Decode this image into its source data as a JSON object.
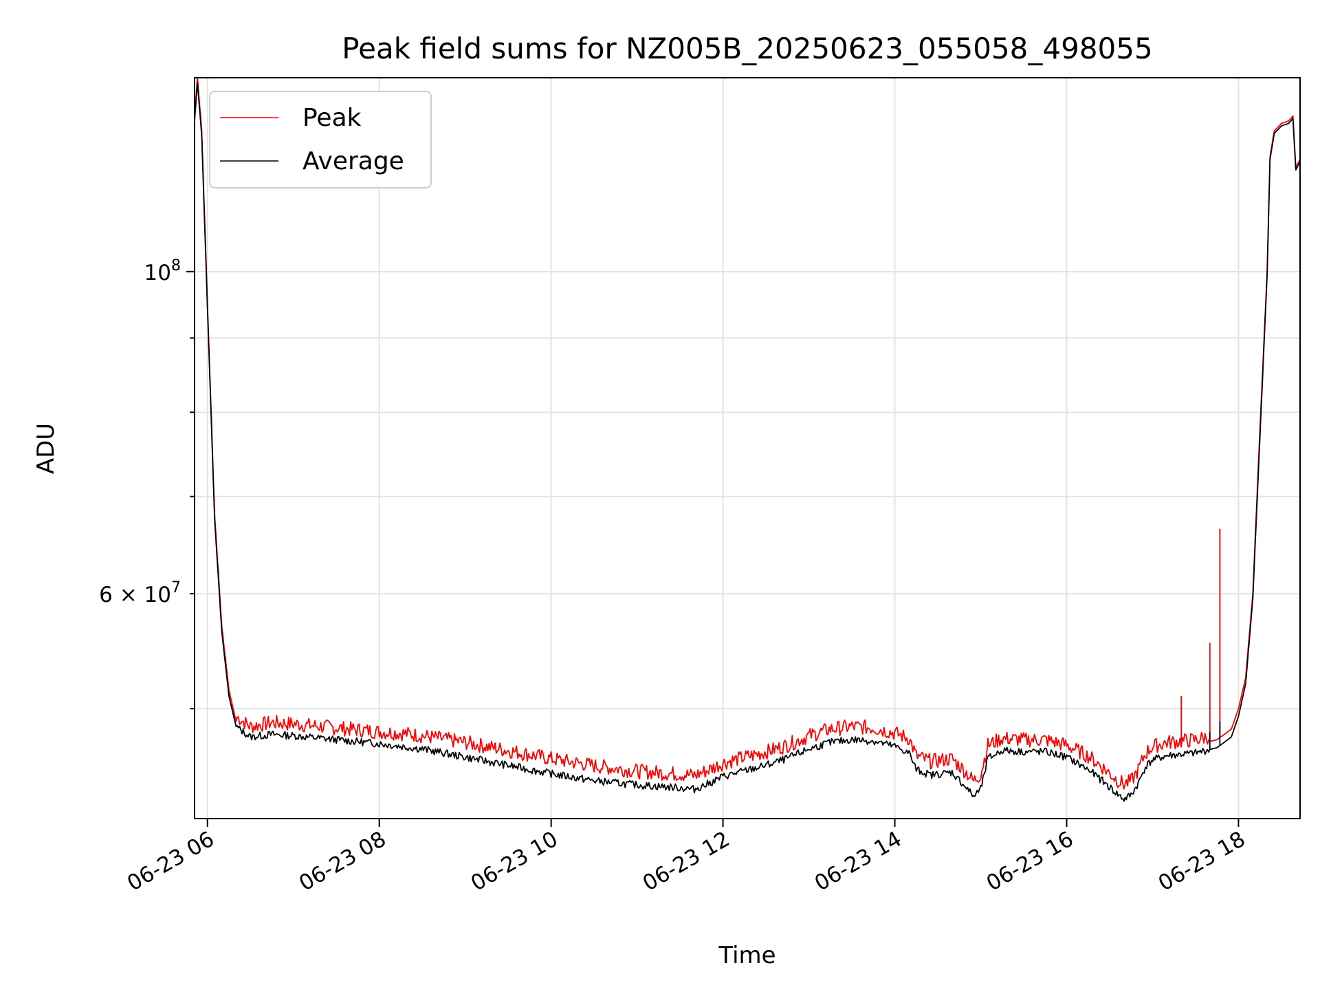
{
  "chart_data": {
    "type": "line",
    "title": "Peak field sums for NZ005B_20250623_055058_498055",
    "xlabel": "Time",
    "ylabel": "ADU",
    "y_scale": "log",
    "ylim": [
      42000000,
      136000000
    ],
    "xlim": [
      "06-23 05:51",
      "06-23 18:43"
    ],
    "grid": true,
    "legend_position": "top-left",
    "x_ticks": [
      "06-23 06",
      "06-23 08",
      "06-23 10",
      "06-23 12",
      "06-23 14",
      "06-23 16",
      "06-23 18"
    ],
    "y_ticks_major": [
      {
        "value": 100000000,
        "label_base": "10",
        "label_exp": "8"
      }
    ],
    "y_ticks_minor": [
      {
        "value": 60000000,
        "label_coef": "6",
        "label_base": "10",
        "label_exp": "7"
      }
    ],
    "y_ticks_unlabeled": [
      50000000,
      70000000,
      80000000,
      90000000
    ],
    "x": [
      "05:51",
      "05:53",
      "05:56",
      "06:00",
      "06:05",
      "06:10",
      "06:15",
      "06:20",
      "06:30",
      "06:45",
      "07:00",
      "07:30",
      "08:00",
      "08:15",
      "08:30",
      "09:00",
      "09:30",
      "10:00",
      "10:30",
      "11:00",
      "11:30",
      "11:40",
      "11:50",
      "12:00",
      "12:30",
      "12:45",
      "13:00",
      "13:15",
      "13:30",
      "13:45",
      "14:00",
      "14:10",
      "14:15",
      "14:25",
      "14:40",
      "14:50",
      "14:55",
      "15:00",
      "15:05",
      "15:15",
      "15:30",
      "15:45",
      "16:00",
      "16:15",
      "16:25",
      "16:35",
      "16:40",
      "16:45",
      "16:50",
      "16:55",
      "17:00",
      "17:10",
      "17:30",
      "17:45",
      "17:55",
      "18:00",
      "18:05",
      "18:10",
      "18:15",
      "18:20",
      "18:22",
      "18:25",
      "18:30",
      "18:35",
      "18:38",
      "18:40",
      "18:41",
      "18:43"
    ],
    "series": [
      {
        "name": "Peak",
        "color": "#ff0000",
        "values": [
          128000000,
          136000000,
          125000000,
          95000000,
          68000000,
          57000000,
          51500000,
          49000000,
          48200000,
          48500000,
          48400000,
          48100000,
          47800000,
          47700000,
          47500000,
          47000000,
          46400000,
          45800000,
          45300000,
          44900000,
          44700000,
          44600000,
          45000000,
          45500000,
          46300000,
          46800000,
          47500000,
          48000000,
          48200000,
          48100000,
          47700000,
          47300000,
          46000000,
          45600000,
          45800000,
          44800000,
          44200000,
          44700000,
          46800000,
          47300000,
          47200000,
          47200000,
          46800000,
          46000000,
          45200000,
          44300000,
          44000000,
          44200000,
          45000000,
          46200000,
          46700000,
          47000000,
          47200000,
          47600000,
          48400000,
          50000000,
          52500000,
          60000000,
          78000000,
          100000000,
          120000000,
          125000000,
          126500000,
          127000000,
          128000000,
          118000000,
          118500000,
          119500000
        ]
      },
      {
        "name": "Average",
        "color": "#000000",
        "values": [
          127000000,
          135000000,
          124000000,
          94500000,
          67500000,
          56500000,
          51000000,
          48600000,
          47800000,
          48000000,
          47900000,
          47600000,
          47300000,
          47100000,
          46900000,
          46300000,
          45700000,
          45100000,
          44600000,
          44300000,
          44100000,
          44000000,
          44400000,
          44900000,
          45700000,
          46200000,
          46900000,
          47400000,
          47600000,
          47500000,
          47100000,
          46600000,
          45400000,
          45000000,
          45200000,
          44100000,
          43500000,
          44000000,
          46200000,
          46800000,
          46700000,
          46700000,
          46300000,
          45400000,
          44600000,
          43700000,
          43300000,
          43600000,
          44400000,
          45600000,
          46100000,
          46400000,
          46600000,
          47000000,
          47800000,
          49400000,
          52000000,
          59500000,
          77000000,
          99500000,
          119500000,
          124500000,
          126000000,
          126500000,
          127500000,
          117500000,
          118000000,
          119000000
        ]
      }
    ],
    "spikes": [
      {
        "time": "17:20",
        "series": "Peak",
        "value": 51000000
      },
      {
        "time": "17:40",
        "series": "Peak",
        "value": 55500000
      },
      {
        "time": "17:40",
        "series": "Average",
        "value": 48200000
      },
      {
        "time": "17:47",
        "series": "Peak",
        "value": 66500000
      },
      {
        "time": "17:47",
        "series": "Average",
        "value": 49000000
      }
    ]
  }
}
